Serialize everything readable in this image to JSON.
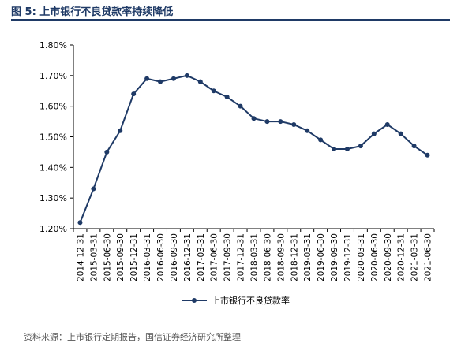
{
  "figure": {
    "title": "图 5:  上市银行不良贷款率持续降低",
    "source": "资料来源：上市银行定期报告，国信证券经济研究所整理"
  },
  "chart_data": {
    "type": "line",
    "title": "",
    "xlabel": "",
    "ylabel": "",
    "ylim": [
      1.2,
      1.8
    ],
    "yticks": [
      "1.20%",
      "1.30%",
      "1.40%",
      "1.50%",
      "1.60%",
      "1.70%",
      "1.80%"
    ],
    "ytick_values": [
      1.2,
      1.3,
      1.4,
      1.5,
      1.6,
      1.7,
      1.8
    ],
    "grid": false,
    "legend_position": "bottom",
    "categories": [
      "2014-12-31",
      "2015-03-31",
      "2015-06-30",
      "2015-09-30",
      "2015-12-31",
      "2016-03-31",
      "2016-06-30",
      "2016-09-30",
      "2016-12-31",
      "2017-03-31",
      "2017-06-30",
      "2017-09-30",
      "2017-12-31",
      "2018-03-31",
      "2018-06-30",
      "2018-09-30",
      "2018-12-31",
      "2019-03-31",
      "2019-06-30",
      "2019-09-30",
      "2019-12-31",
      "2020-03-31",
      "2020-06-30",
      "2020-09-30",
      "2020-12-31",
      "2021-03-31",
      "2021-06-30"
    ],
    "series": [
      {
        "name": "上市银行不良贷款率",
        "color": "#1f3a66",
        "values": [
          1.22,
          1.33,
          1.45,
          1.52,
          1.64,
          1.69,
          1.68,
          1.69,
          1.7,
          1.68,
          1.65,
          1.63,
          1.6,
          1.56,
          1.55,
          1.55,
          1.54,
          1.52,
          1.49,
          1.46,
          1.46,
          1.47,
          1.51,
          1.54,
          1.51,
          1.47,
          1.44
        ]
      }
    ]
  }
}
